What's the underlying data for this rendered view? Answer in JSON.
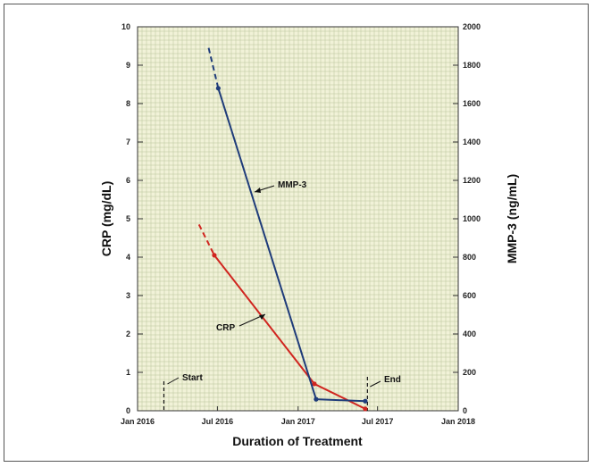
{
  "chart_data": {
    "type": "line",
    "title": "",
    "xlabel": "Duration of Treatment",
    "ylabel": "CRP (mg/dL)",
    "y2label": "MMP-3 (ng/mL)",
    "x_ticks": [
      "Jan 2016",
      "Jul 2016",
      "Jan 2017",
      "Jul 2017",
      "Jan 2018"
    ],
    "xlim": [
      "2016-01-01",
      "2018-01-01"
    ],
    "ylim": [
      0,
      10
    ],
    "y_ticks": [
      0,
      1,
      2,
      3,
      4,
      5,
      6,
      7,
      8,
      9,
      10
    ],
    "y2lim": [
      0,
      2000
    ],
    "y2_ticks": [
      0,
      200,
      400,
      600,
      800,
      1000,
      1200,
      1400,
      1600,
      1800,
      2000
    ],
    "grid": true,
    "series": [
      {
        "name": "CRP",
        "axis": "left",
        "color": "#d0251f",
        "points": [
          {
            "x": "2016-06-24",
            "y": 4.05
          },
          {
            "x": "2017-02-07",
            "y": 0.7
          },
          {
            "x": "2017-06-03",
            "y": 0.05
          }
        ],
        "dashed_lead_in": {
          "x": "2016-05-20",
          "y": 4.85
        }
      },
      {
        "name": "MMP-3",
        "axis": "right",
        "color": "#1f3c7a",
        "points": [
          {
            "x": "2016-07-03",
            "y": 1680
          },
          {
            "x": "2017-02-11",
            "y": 60
          },
          {
            "x": "2017-06-03",
            "y": 50
          }
        ],
        "dashed_lead_in": {
          "x": "2016-06-11",
          "y": 1890
        }
      }
    ],
    "annotations": [
      {
        "text": "Start",
        "x": "2016-03-01"
      },
      {
        "text": "End",
        "x": "2017-06-08"
      },
      {
        "text": "MMP-3",
        "series": "MMP-3"
      },
      {
        "text": "CRP",
        "series": "CRP"
      }
    ]
  }
}
